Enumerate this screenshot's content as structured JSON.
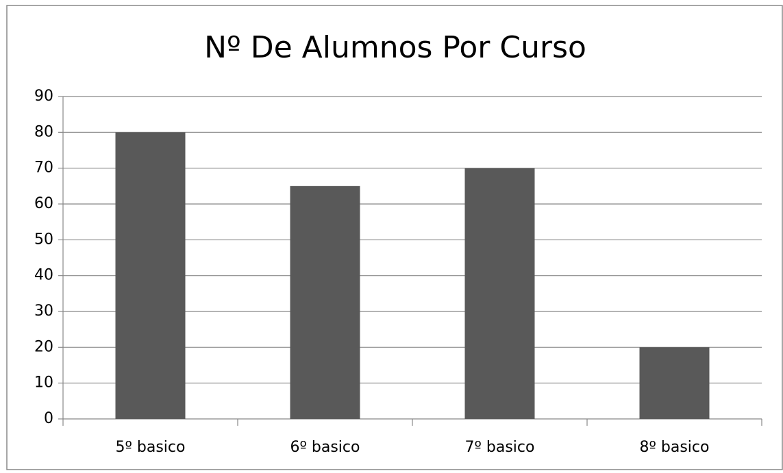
{
  "chart_data": {
    "type": "bar",
    "title": "Nº De Alumnos Por Curso",
    "categories": [
      "5º basico",
      "6º basico",
      "7º basico",
      "8º basico"
    ],
    "values": [
      80,
      65,
      70,
      20
    ],
    "color": "#595959",
    "ylim": [
      0,
      90
    ],
    "yticks": [
      0,
      10,
      20,
      30,
      40,
      50,
      60,
      70,
      80,
      90
    ],
    "grid": true
  }
}
